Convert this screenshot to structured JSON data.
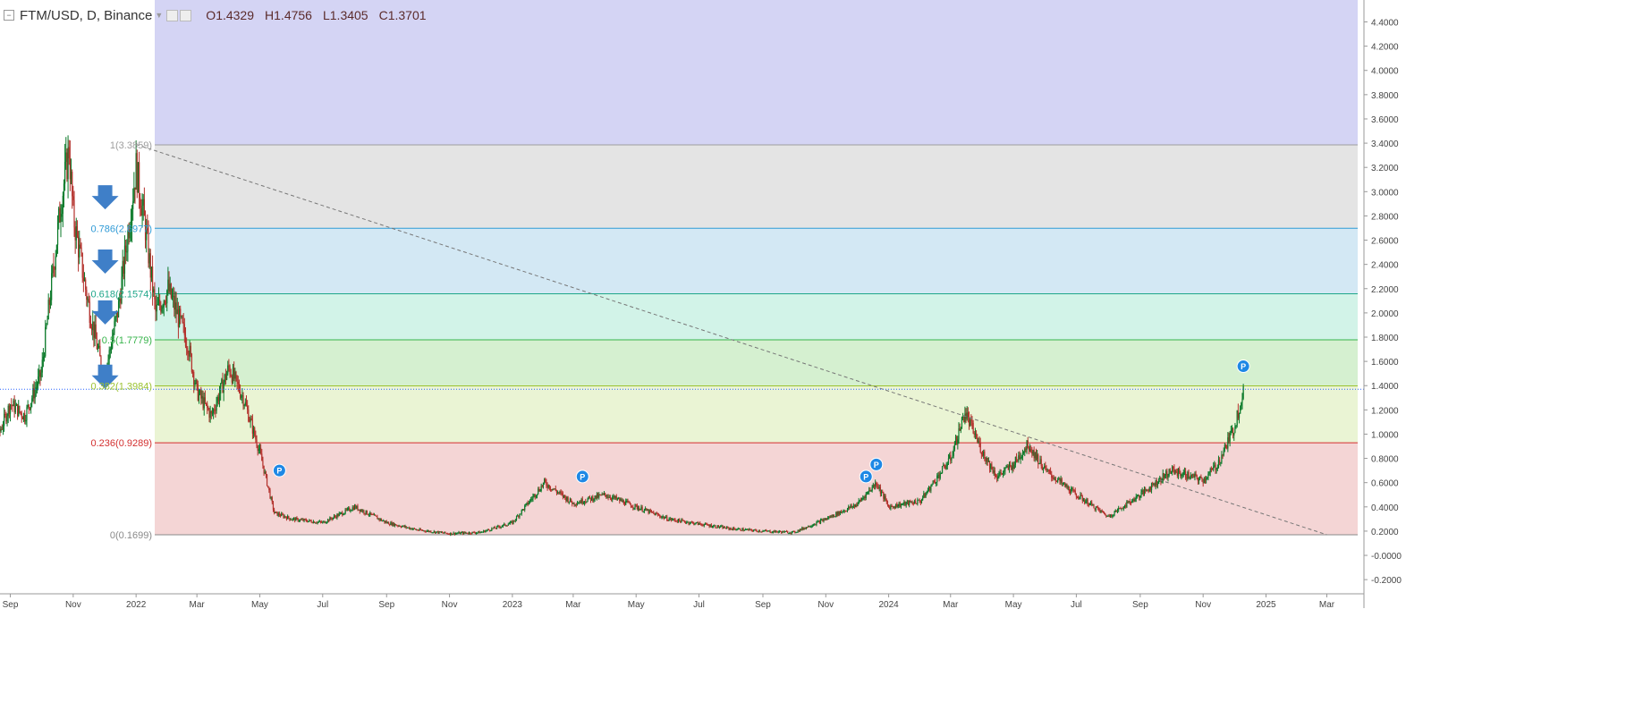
{
  "header": {
    "symbol": "FTM/USD, D, Binance",
    "ohlc": [
      {
        "key": "O",
        "value": "1.4329"
      },
      {
        "key": "H",
        "value": "1.4756"
      },
      {
        "key": "L",
        "value": "1.3405"
      },
      {
        "key": "C",
        "value": "1.3701"
      }
    ]
  },
  "price_label": "1.3701",
  "colors": {
    "bull": "#0b7a2a",
    "bear": "#b3302b",
    "accent": "#2962ff",
    "arrow": "#3f7fc8",
    "marker": "#1e88e5"
  },
  "chart_data": {
    "type": "candlestick",
    "title": "",
    "xlabel": "",
    "ylabel": "",
    "ylim": [
      -0.3,
      4.55
    ],
    "x_tick_labels": [
      "Sep",
      "Nov",
      "2022",
      "Mar",
      "May",
      "Jul",
      "Sep",
      "Nov",
      "2023",
      "Mar",
      "May",
      "Jul",
      "Sep",
      "Nov",
      "2024",
      "Mar",
      "May",
      "Jul",
      "Sep",
      "Nov",
      "2025",
      "Mar"
    ],
    "y_ticks": [
      "4.4000",
      "4.2000",
      "4.0000",
      "3.8000",
      "3.6000",
      "3.4000",
      "3.2000",
      "3.0000",
      "2.8000",
      "2.6000",
      "2.4000",
      "2.2000",
      "2.0000",
      "1.8000",
      "1.6000",
      "1.4000",
      "1.2000",
      "1.0000",
      "0.8000",
      "0.6000",
      "0.4000",
      "0.2000",
      "-0.0000",
      "-0.2000"
    ],
    "last_close": 1.3701,
    "fib_levels": [
      {
        "ratio": 1,
        "value": 3.3859,
        "label": "1(3.3859)",
        "color": "#9e9e9e",
        "fill": "#e4e4e4"
      },
      {
        "ratio": 0.786,
        "value": 2.6977,
        "label": "0.786(2.6977)",
        "color": "#2f9ad6",
        "fill": "#d3e8f4"
      },
      {
        "ratio": 0.618,
        "value": 2.1574,
        "label": "0.618(2.1574)",
        "color": "#1fa68a",
        "fill": "#d2f3e8"
      },
      {
        "ratio": 0.5,
        "value": 1.7779,
        "label": "0.5(1.7779)",
        "color": "#36b34a",
        "fill": "#d5f0d0"
      },
      {
        "ratio": 0.382,
        "value": 1.3984,
        "label": "0.382(1.3984)",
        "color": "#9ac22f",
        "fill": "#eaf4d4"
      },
      {
        "ratio": 0.236,
        "value": 0.9289,
        "label": "0.236(0.9289)",
        "color": "#d32f2f",
        "fill": "#f4d5d5"
      },
      {
        "ratio": 0,
        "value": 0.1699,
        "label": "0(0.1699)",
        "color": "#8a8a8a",
        "fill": null
      }
    ],
    "extension_zone": {
      "from": 3.3859,
      "to": 4.55,
      "fill": "#d4d4f4"
    },
    "trendline": {
      "from": {
        "date": "2022-01",
        "value": 3.39
      },
      "to": {
        "date": "2025-03",
        "value": 0.17
      },
      "style": "dashed"
    },
    "price_path": [
      {
        "date": "2021-08",
        "value": 0.55
      },
      {
        "date": "2021-09",
        "value": 1.25
      },
      {
        "date": "2021-09-15",
        "value": 1.15
      },
      {
        "date": "2021-10",
        "value": 1.5
      },
      {
        "date": "2021-10-20",
        "value": 2.9
      },
      {
        "date": "2021-10-28",
        "value": 3.35
      },
      {
        "date": "2021-11",
        "value": 2.8
      },
      {
        "date": "2021-11-15",
        "value": 2.1
      },
      {
        "date": "2021-12",
        "value": 1.45
      },
      {
        "date": "2021-12-15",
        "value": 2.05
      },
      {
        "date": "2022-01",
        "value": 3.2
      },
      {
        "date": "2022-01-10",
        "value": 2.7
      },
      {
        "date": "2022-01-20",
        "value": 2.0
      },
      {
        "date": "2022-02",
        "value": 2.2
      },
      {
        "date": "2022-02-20",
        "value": 1.75
      },
      {
        "date": "2022-03",
        "value": 1.35
      },
      {
        "date": "2022-03-15",
        "value": 1.15
      },
      {
        "date": "2022-04",
        "value": 1.55
      },
      {
        "date": "2022-04-15",
        "value": 1.3
      },
      {
        "date": "2022-05",
        "value": 0.85
      },
      {
        "date": "2022-05-15",
        "value": 0.35
      },
      {
        "date": "2022-06",
        "value": 0.3
      },
      {
        "date": "2022-07",
        "value": 0.27
      },
      {
        "date": "2022-08",
        "value": 0.4
      },
      {
        "date": "2022-09",
        "value": 0.27
      },
      {
        "date": "2022-10",
        "value": 0.21
      },
      {
        "date": "2022-11",
        "value": 0.18
      },
      {
        "date": "2022-12",
        "value": 0.19
      },
      {
        "date": "2023-01",
        "value": 0.27
      },
      {
        "date": "2023-02",
        "value": 0.6
      },
      {
        "date": "2023-03",
        "value": 0.43
      },
      {
        "date": "2023-04",
        "value": 0.5
      },
      {
        "date": "2023-05",
        "value": 0.4
      },
      {
        "date": "2023-06",
        "value": 0.3
      },
      {
        "date": "2023-07",
        "value": 0.26
      },
      {
        "date": "2023-08",
        "value": 0.22
      },
      {
        "date": "2023-09",
        "value": 0.2
      },
      {
        "date": "2023-10",
        "value": 0.19
      },
      {
        "date": "2023-11",
        "value": 0.3
      },
      {
        "date": "2023-12",
        "value": 0.42
      },
      {
        "date": "2023-12-20",
        "value": 0.6
      },
      {
        "date": "2024-01",
        "value": 0.4
      },
      {
        "date": "2024-02",
        "value": 0.45
      },
      {
        "date": "2024-03",
        "value": 0.8
      },
      {
        "date": "2024-03-15",
        "value": 1.18
      },
      {
        "date": "2024-04",
        "value": 0.85
      },
      {
        "date": "2024-04-15",
        "value": 0.65
      },
      {
        "date": "2024-05",
        "value": 0.75
      },
      {
        "date": "2024-05-15",
        "value": 0.92
      },
      {
        "date": "2024-06",
        "value": 0.7
      },
      {
        "date": "2024-07",
        "value": 0.5
      },
      {
        "date": "2024-08",
        "value": 0.32
      },
      {
        "date": "2024-09",
        "value": 0.5
      },
      {
        "date": "2024-10",
        "value": 0.7
      },
      {
        "date": "2024-11",
        "value": 0.62
      },
      {
        "date": "2024-11-15",
        "value": 0.75
      },
      {
        "date": "2024-12",
        "value": 1.05
      },
      {
        "date": "2024-12-10",
        "value": 1.37
      }
    ],
    "annotations": {
      "down_arrows": [
        {
          "date": "2021-12-02",
          "value": 2.95
        },
        {
          "date": "2021-12-02",
          "value": 2.42
        },
        {
          "date": "2021-12-02",
          "value": 2.0
        },
        {
          "date": "2021-12-02",
          "value": 1.47
        }
      ],
      "p_markers": [
        {
          "label": "P",
          "date": "2022-05-20",
          "value": 0.7
        },
        {
          "label": "P",
          "date": "2023-03-10",
          "value": 0.65
        },
        {
          "label": "P",
          "date": "2023-12-10",
          "value": 0.65
        },
        {
          "label": "P",
          "date": "2023-12-20",
          "value": 0.75
        },
        {
          "label": "P",
          "date": "2024-12-10",
          "value": 1.56
        }
      ]
    }
  }
}
